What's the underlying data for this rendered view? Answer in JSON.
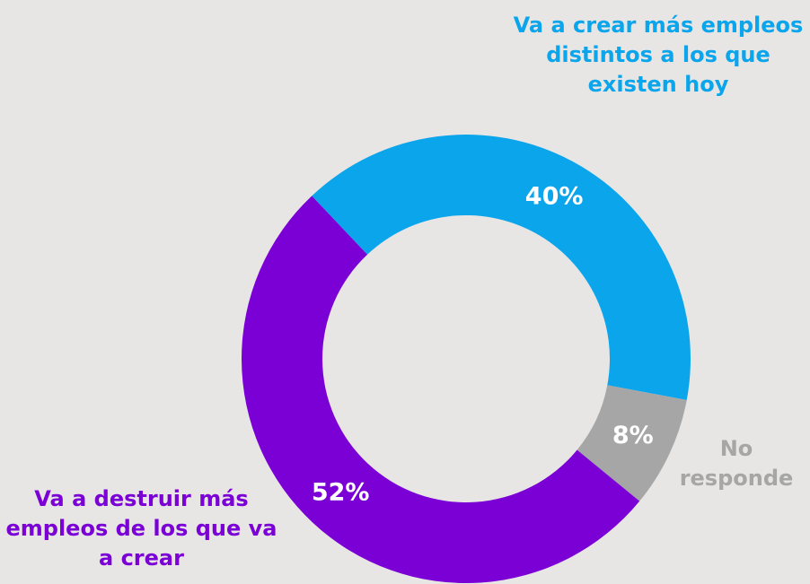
{
  "chart_data": {
    "type": "pie",
    "categories": [
      "Va a crear más empleos distintos a los que existen hoy",
      "No responde",
      "Va a destruir más empleos de los que va a crear"
    ],
    "values": [
      40,
      8,
      52
    ],
    "value_labels": [
      "40%",
      "8%",
      "52%"
    ],
    "colors": [
      "#0ba5ec",
      "#a6a6a6",
      "#7b00d6"
    ]
  }
}
